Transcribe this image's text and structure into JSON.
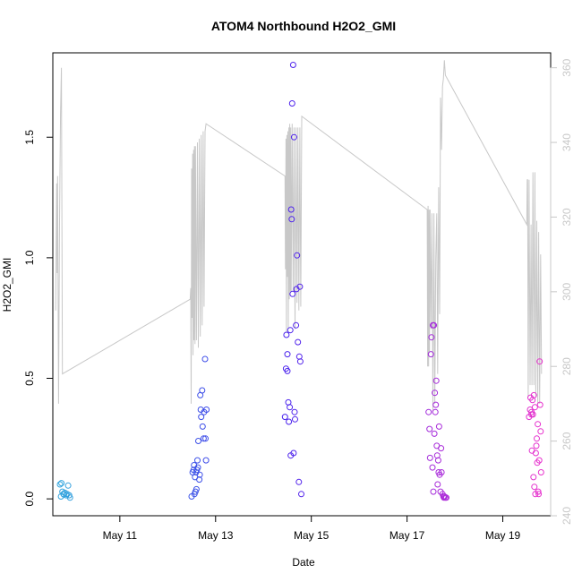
{
  "chart_data": {
    "type": "scatter",
    "title": "ATOM4 Northbound H2O2_GMI",
    "xlabel": "Date",
    "ylabel": "H2O2_GMI",
    "right_axis_label": "",
    "xlim": [
      9.6,
      20.0
    ],
    "ylim": [
      -0.07,
      1.85
    ],
    "y2lim": [
      240,
      364
    ],
    "x_ticks": [
      {
        "value": 11,
        "label": "May 11"
      },
      {
        "value": 13,
        "label": "May 13"
      },
      {
        "value": 15,
        "label": "May 15"
      },
      {
        "value": 17,
        "label": "May 17"
      },
      {
        "value": 19,
        "label": "May 19"
      }
    ],
    "y_ticks": [
      {
        "value": 0.0,
        "label": "0.0"
      },
      {
        "value": 0.5,
        "label": "0.5"
      },
      {
        "value": 1.0,
        "label": "1.0"
      },
      {
        "value": 1.5,
        "label": "1.5"
      }
    ],
    "y2_ticks": [
      {
        "value": 240,
        "label": "240"
      },
      {
        "value": 260,
        "label": "260"
      },
      {
        "value": 280,
        "label": "280"
      },
      {
        "value": 300,
        "label": "300"
      },
      {
        "value": 320,
        "label": "320"
      },
      {
        "value": 340,
        "label": "340"
      },
      {
        "value": 360,
        "label": "360"
      }
    ],
    "colors": {
      "line": "#c8c8c8",
      "start": "#33aadd",
      "mid": "#4422ee",
      "end": "#ee33cc",
      "axis": "#000000"
    },
    "grid": false,
    "series": [
      {
        "marker": "circle",
        "points": [
          [
            9.75,
            0.06
          ],
          [
            9.78,
            0.065
          ],
          [
            9.8,
            0.03
          ],
          [
            9.82,
            0.02
          ],
          [
            9.85,
            0.025
          ],
          [
            9.88,
            0.015
          ],
          [
            9.9,
            0.02
          ],
          [
            9.92,
            0.055
          ],
          [
            9.94,
            0.015
          ],
          [
            9.96,
            0.005
          ],
          [
            9.77,
            0.01
          ],
          [
            9.83,
            0.018
          ],
          [
            12.5,
            0.01
          ],
          [
            12.52,
            0.11
          ],
          [
            12.54,
            0.12
          ],
          [
            12.55,
            0.14
          ],
          [
            12.57,
            0.09
          ],
          [
            12.58,
            0.03
          ],
          [
            12.6,
            0.04
          ],
          [
            12.61,
            0.12
          ],
          [
            12.62,
            0.16
          ],
          [
            12.63,
            0.13
          ],
          [
            12.64,
            0.24
          ],
          [
            12.66,
            0.08
          ],
          [
            12.68,
            0.43
          ],
          [
            12.69,
            0.37
          ],
          [
            12.7,
            0.34
          ],
          [
            12.72,
            0.45
          ],
          [
            12.73,
            0.3
          ],
          [
            12.75,
            0.25
          ],
          [
            12.76,
            0.36
          ],
          [
            12.78,
            0.58
          ],
          [
            12.79,
            0.25
          ],
          [
            12.8,
            0.16
          ],
          [
            12.81,
            0.37
          ],
          [
            12.56,
            0.02
          ],
          [
            12.59,
            0.11
          ],
          [
            12.67,
            0.1
          ],
          [
            14.45,
            0.34
          ],
          [
            14.47,
            0.54
          ],
          [
            14.48,
            0.68
          ],
          [
            14.5,
            0.6
          ],
          [
            14.52,
            0.4
          ],
          [
            14.53,
            0.32
          ],
          [
            14.55,
            0.38
          ],
          [
            14.56,
            0.7
          ],
          [
            14.57,
            0.18
          ],
          [
            14.58,
            1.2
          ],
          [
            14.59,
            1.16
          ],
          [
            14.6,
            1.64
          ],
          [
            14.61,
            0.85
          ],
          [
            14.62,
            1.8
          ],
          [
            14.63,
            0.19
          ],
          [
            14.64,
            1.5
          ],
          [
            14.65,
            0.36
          ],
          [
            14.66,
            0.33
          ],
          [
            14.68,
            0.72
          ],
          [
            14.69,
            0.87
          ],
          [
            14.7,
            1.01
          ],
          [
            14.72,
            0.65
          ],
          [
            14.74,
            0.07
          ],
          [
            14.75,
            0.59
          ],
          [
            14.76,
            0.88
          ],
          [
            14.77,
            0.57
          ],
          [
            14.79,
            0.02
          ],
          [
            14.5,
            0.53
          ],
          [
            17.45,
            0.36
          ],
          [
            17.47,
            0.29
          ],
          [
            17.48,
            0.17
          ],
          [
            17.5,
            0.6
          ],
          [
            17.51,
            0.67
          ],
          [
            17.53,
            0.13
          ],
          [
            17.54,
            0.72
          ],
          [
            17.55,
            0.03
          ],
          [
            17.56,
            0.72
          ],
          [
            17.57,
            0.27
          ],
          [
            17.58,
            0.44
          ],
          [
            17.6,
            0.39
          ],
          [
            17.61,
            0.49
          ],
          [
            17.62,
            0.22
          ],
          [
            17.63,
            0.18
          ],
          [
            17.64,
            0.06
          ],
          [
            17.65,
            0.16
          ],
          [
            17.66,
            0.11
          ],
          [
            17.68,
            0.1
          ],
          [
            17.7,
            0.03
          ],
          [
            17.71,
            0.21
          ],
          [
            17.72,
            0.11
          ],
          [
            17.74,
            0.02
          ],
          [
            17.76,
            0.01
          ],
          [
            17.77,
            0.005
          ],
          [
            17.78,
            0.01
          ],
          [
            17.8,
            0.005
          ],
          [
            17.82,
            0.005
          ],
          [
            17.59,
            0.36
          ],
          [
            17.67,
            0.3
          ],
          [
            19.55,
            0.34
          ],
          [
            19.57,
            0.37
          ],
          [
            19.58,
            0.42
          ],
          [
            19.6,
            0.36
          ],
          [
            19.61,
            0.2
          ],
          [
            19.62,
            0.41
          ],
          [
            19.63,
            0.35
          ],
          [
            19.64,
            0.09
          ],
          [
            19.65,
            0.43
          ],
          [
            19.66,
            0.05
          ],
          [
            19.67,
            0.38
          ],
          [
            19.68,
            0.02
          ],
          [
            19.69,
            0.19
          ],
          [
            19.7,
            0.22
          ],
          [
            19.71,
            0.25
          ],
          [
            19.72,
            0.15
          ],
          [
            19.73,
            0.31
          ],
          [
            19.74,
            0.03
          ],
          [
            19.75,
            0.02
          ],
          [
            19.76,
            0.16
          ],
          [
            19.77,
            0.57
          ],
          [
            19.78,
            0.39
          ],
          [
            19.79,
            0.28
          ],
          [
            19.8,
            0.11
          ],
          [
            19.6,
            0.35
          ]
        ]
      }
    ],
    "line_series": {
      "axis": "right",
      "points": [
        [
          9.66,
          295
        ],
        [
          9.68,
          329
        ],
        [
          9.69,
          305
        ],
        [
          9.7,
          331
        ],
        [
          9.72,
          270
        ],
        [
          9.74,
          319
        ],
        [
          9.76,
          348
        ],
        [
          9.78,
          360
        ],
        [
          9.8,
          278
        ],
        [
          12.47,
          298
        ],
        [
          12.48,
          301
        ],
        [
          12.49,
          270
        ],
        [
          12.5,
          333
        ],
        [
          12.51,
          293
        ],
        [
          12.52,
          337
        ],
        [
          12.53,
          283
        ],
        [
          12.54,
          338
        ],
        [
          12.55,
          287
        ],
        [
          12.56,
          339
        ],
        [
          12.57,
          286
        ],
        [
          12.58,
          339
        ],
        [
          12.6,
          287
        ],
        [
          12.62,
          340
        ],
        [
          12.64,
          285
        ],
        [
          12.66,
          341
        ],
        [
          12.68,
          288
        ],
        [
          12.7,
          342
        ],
        [
          12.72,
          291
        ],
        [
          12.74,
          343
        ],
        [
          12.76,
          296
        ],
        [
          12.78,
          343
        ],
        [
          12.8,
          345
        ],
        [
          14.45,
          331
        ],
        [
          14.46,
          306
        ],
        [
          14.47,
          341
        ],
        [
          14.48,
          289
        ],
        [
          14.49,
          342
        ],
        [
          14.5,
          304
        ],
        [
          14.51,
          343
        ],
        [
          14.52,
          290
        ],
        [
          14.53,
          344
        ],
        [
          14.54,
          298
        ],
        [
          14.55,
          345
        ],
        [
          14.56,
          300
        ],
        [
          14.57,
          344
        ],
        [
          14.58,
          300
        ],
        [
          14.6,
          345
        ],
        [
          14.62,
          300
        ],
        [
          14.64,
          344
        ],
        [
          14.66,
          290
        ],
        [
          14.68,
          344
        ],
        [
          14.7,
          297
        ],
        [
          14.72,
          344
        ],
        [
          14.74,
          295
        ],
        [
          14.76,
          344
        ],
        [
          14.78,
          296
        ],
        [
          14.8,
          347
        ],
        [
          17.42,
          322
        ],
        [
          17.43,
          280
        ],
        [
          17.44,
          323
        ],
        [
          17.45,
          280
        ],
        [
          17.46,
          322
        ],
        [
          17.47,
          284
        ],
        [
          17.48,
          322
        ],
        [
          17.5,
          290
        ],
        [
          17.52,
          321
        ],
        [
          17.54,
          268
        ],
        [
          17.56,
          321
        ],
        [
          17.58,
          270
        ],
        [
          17.6,
          309
        ],
        [
          17.62,
          321
        ],
        [
          17.64,
          278
        ],
        [
          17.66,
          328
        ],
        [
          17.68,
          294
        ],
        [
          17.7,
          352
        ],
        [
          17.72,
          338
        ],
        [
          17.74,
          355
        ],
        [
          17.76,
          357
        ],
        [
          17.78,
          362
        ],
        [
          17.8,
          358
        ],
        [
          19.5,
          318
        ],
        [
          19.51,
          330
        ],
        [
          19.52,
          330
        ],
        [
          19.53,
          272
        ],
        [
          19.55,
          330
        ],
        [
          19.57,
          275
        ],
        [
          19.59,
          318
        ],
        [
          19.61,
          275
        ],
        [
          19.63,
          332
        ],
        [
          19.65,
          275
        ],
        [
          19.67,
          332
        ],
        [
          19.69,
          272
        ],
        [
          19.71,
          319
        ],
        [
          19.73,
          270
        ],
        [
          19.75,
          316
        ],
        [
          19.77,
          270
        ],
        [
          19.79,
          310
        ],
        [
          19.81,
          278
        ]
      ]
    }
  }
}
